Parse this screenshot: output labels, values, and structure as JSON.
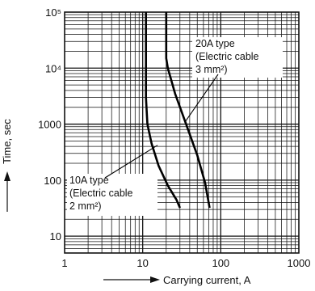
{
  "chart_data": {
    "type": "line",
    "xlabel": "Carrying current, A",
    "ylabel": "Time, sec",
    "xscale": "log",
    "yscale": "log",
    "xlim": [
      1,
      1000
    ],
    "ylim": [
      5,
      100000
    ],
    "grid": true,
    "x_ticks": [
      {
        "value": 1,
        "label": "1"
      },
      {
        "value": 10,
        "label": "10"
      },
      {
        "value": 100,
        "label": "100"
      },
      {
        "value": 1000,
        "label": "1000"
      }
    ],
    "y_ticks": [
      {
        "value": 10,
        "label": "10"
      },
      {
        "value": 100,
        "label": "100"
      },
      {
        "value": 1000,
        "label": "1000"
      },
      {
        "value": 10000,
        "label": "10⁴"
      },
      {
        "value": 100000,
        "label": "10⁵"
      }
    ],
    "series": [
      {
        "id": "10a",
        "x": [
          11,
          11,
          11.5,
          13,
          16,
          21,
          27,
          30
        ],
        "y": [
          100000,
          3000,
          1000,
          450,
          180,
          80,
          45,
          32
        ]
      },
      {
        "id": "20a",
        "x": [
          20,
          20,
          21,
          26,
          36,
          50,
          63,
          72
        ],
        "y": [
          100000,
          15000,
          10000,
          3500,
          1000,
          280,
          90,
          32
        ]
      }
    ],
    "annotations": [
      {
        "id": "20a",
        "lines": [
          "20A type",
          "(Electric cable",
          "3 mm²)"
        ],
        "point_x": 35,
        "point_y": 1100
      },
      {
        "id": "10a",
        "lines": [
          "10A type",
          "(Electric cable",
          "2 mm²)"
        ],
        "point_x": 15.5,
        "point_y": 420
      }
    ]
  }
}
